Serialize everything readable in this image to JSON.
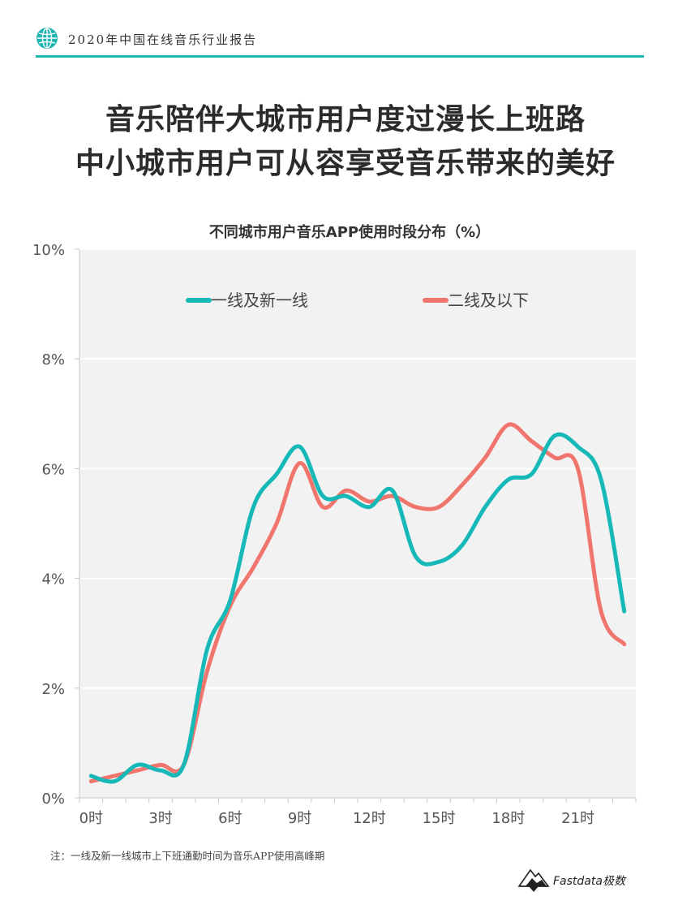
{
  "header": {
    "report_title": "2020年中国在线音乐行业报告",
    "globe_icon": "globe-icon",
    "accent_color": "#1fb5b0"
  },
  "headline": {
    "line1": "音乐陪伴大城市用户度过漫长上班路",
    "line2": "中小城市用户可从容享受音乐带来的美好"
  },
  "chart_data": {
    "type": "line",
    "title": "不同城市用户音乐APP使用时段分布（%）",
    "x": [
      0,
      1,
      2,
      3,
      4,
      5,
      6,
      7,
      8,
      9,
      10,
      11,
      12,
      13,
      14,
      15,
      16,
      17,
      18,
      19,
      20,
      21,
      22,
      23
    ],
    "x_tick_values": [
      0,
      3,
      6,
      9,
      12,
      15,
      18,
      21
    ],
    "x_tick_labels": [
      "0时",
      "3时",
      "6时",
      "9时",
      "12时",
      "15时",
      "18时",
      "21时"
    ],
    "xlim": [
      -0.5,
      23.5
    ],
    "ylim": [
      0,
      10
    ],
    "y_ticks": [
      0,
      2,
      4,
      6,
      8,
      10
    ],
    "y_tick_labels": [
      "0%",
      "2%",
      "4%",
      "6%",
      "8%",
      "10%"
    ],
    "grid": true,
    "legend_position": "top",
    "series": [
      {
        "name": "一线及新一线",
        "color": "#16b8b8",
        "values": [
          0.4,
          0.3,
          0.6,
          0.5,
          0.6,
          2.7,
          3.6,
          5.3,
          5.9,
          6.4,
          5.5,
          5.5,
          5.3,
          5.6,
          4.4,
          4.3,
          4.6,
          5.3,
          5.8,
          5.9,
          6.6,
          6.4,
          5.8,
          3.4
        ]
      },
      {
        "name": "二线及以下",
        "color": "#f0766d",
        "values": [
          0.3,
          0.4,
          0.5,
          0.6,
          0.6,
          2.3,
          3.5,
          4.2,
          5.0,
          6.1,
          5.3,
          5.6,
          5.4,
          5.5,
          5.3,
          5.3,
          5.7,
          6.2,
          6.8,
          6.5,
          6.2,
          6.0,
          3.4,
          2.8
        ]
      }
    ],
    "plot_background": "#f2f2f2",
    "grid_color": "#ffffff"
  },
  "footer": {
    "note": "注：一线及新一线城市上下班通勤时间为音乐APP使用高峰期",
    "logo_text": "Fastdata极数",
    "logo_icon": "mountain-logo-icon"
  }
}
